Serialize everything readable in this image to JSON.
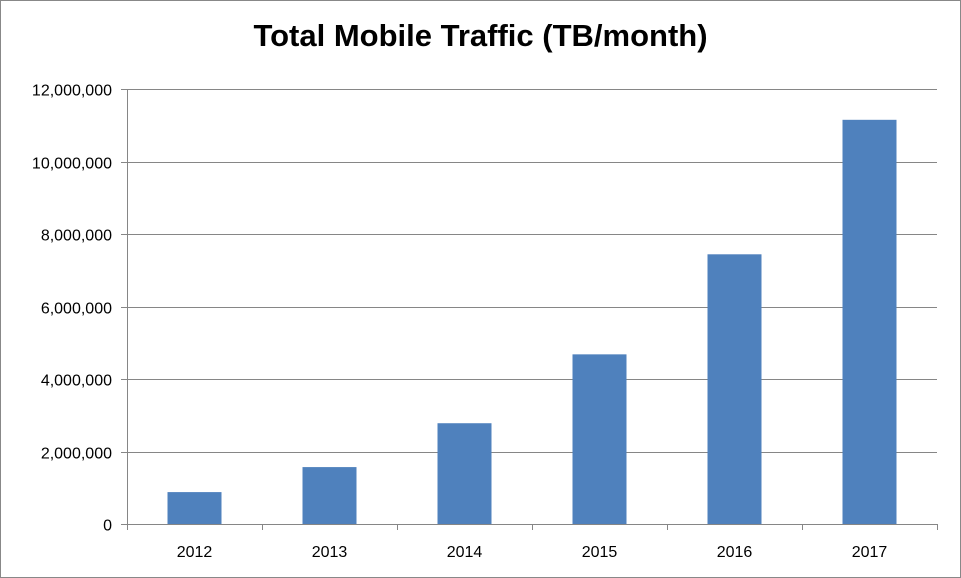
{
  "chart_data": {
    "type": "bar",
    "title": "Total Mobile Traffic (TB/month)",
    "xlabel": "",
    "ylabel": "",
    "categories": [
      "2012",
      "2013",
      "2014",
      "2015",
      "2016",
      "2017"
    ],
    "values": [
      880000,
      1570000,
      2780000,
      4680000,
      7440000,
      11150000
    ],
    "ylim": [
      0,
      12000000
    ],
    "yticks": [
      0,
      2000000,
      4000000,
      6000000,
      8000000,
      10000000,
      12000000
    ],
    "ytick_labels": [
      "0",
      "2,000,000",
      "4,000,000",
      "6,000,000",
      "8,000,000",
      "10,000,000",
      "12,000,000"
    ],
    "grid": true,
    "legend": "none",
    "bar_color": "#4f81bd",
    "grid_color": "#868686"
  }
}
